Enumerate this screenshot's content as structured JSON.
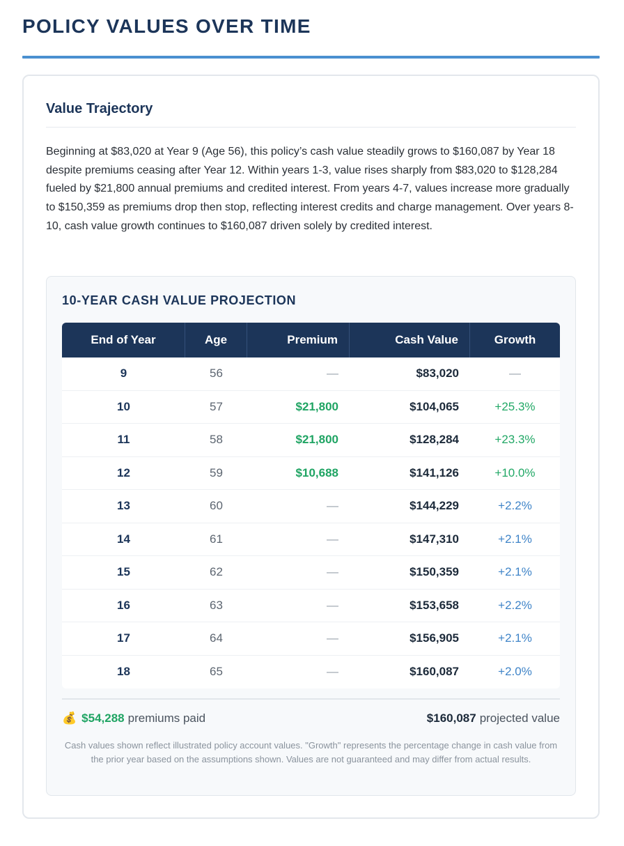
{
  "page": {
    "title": "POLICY VALUES OVER TIME"
  },
  "section": {
    "heading": "Value Trajectory",
    "summary": "Beginning at $83,020 at Year 9 (Age 56), this policy’s cash value steadily grows to $160,087 by Year 18 despite premiums ceasing after Year 12. Within years 1-3, value rises sharply from $83,020 to $128,284 fueled by $21,800 annual premiums and credited interest. From years 4-7, values increase more gradually to $150,359 as premiums drop then stop, reflecting interest credits and charge management. Over years 8-10, cash value growth continues to $160,087 driven solely by credited interest."
  },
  "projection": {
    "title": "10-YEAR CASH VALUE PROJECTION",
    "columns": [
      "End of Year",
      "Age",
      "Premium",
      "Cash Value",
      "Growth"
    ],
    "rows": [
      {
        "year": "9",
        "age": "56",
        "premium": "—",
        "cash_value": "$83,020",
        "growth": "—",
        "premium_paid": false,
        "growth_style": "dash"
      },
      {
        "year": "10",
        "age": "57",
        "premium": "$21,800",
        "cash_value": "$104,065",
        "growth": "+25.3%",
        "premium_paid": true,
        "growth_style": "green"
      },
      {
        "year": "11",
        "age": "58",
        "premium": "$21,800",
        "cash_value": "$128,284",
        "growth": "+23.3%",
        "premium_paid": true,
        "growth_style": "green"
      },
      {
        "year": "12",
        "age": "59",
        "premium": "$10,688",
        "cash_value": "$141,126",
        "growth": "+10.0%",
        "premium_paid": true,
        "growth_style": "green"
      },
      {
        "year": "13",
        "age": "60",
        "premium": "—",
        "cash_value": "$144,229",
        "growth": "+2.2%",
        "premium_paid": false,
        "growth_style": "blue"
      },
      {
        "year": "14",
        "age": "61",
        "premium": "—",
        "cash_value": "$147,310",
        "growth": "+2.1%",
        "premium_paid": false,
        "growth_style": "blue"
      },
      {
        "year": "15",
        "age": "62",
        "premium": "—",
        "cash_value": "$150,359",
        "growth": "+2.1%",
        "premium_paid": false,
        "growth_style": "blue"
      },
      {
        "year": "16",
        "age": "63",
        "premium": "—",
        "cash_value": "$153,658",
        "growth": "+2.2%",
        "premium_paid": false,
        "growth_style": "blue"
      },
      {
        "year": "17",
        "age": "64",
        "premium": "—",
        "cash_value": "$156,905",
        "growth": "+2.1%",
        "premium_paid": false,
        "growth_style": "blue"
      },
      {
        "year": "18",
        "age": "65",
        "premium": "—",
        "cash_value": "$160,087",
        "growth": "+2.0%",
        "premium_paid": false,
        "growth_style": "blue"
      }
    ],
    "totals": {
      "icon": "moneybag-icon",
      "icon_glyph": "💰",
      "premiums_amount": "$54,288",
      "premiums_label": "premiums paid",
      "projected_amount": "$160,087",
      "projected_label": "projected value"
    },
    "disclaimer": "Cash values shown reflect illustrated policy account values. \"Growth\" represents the percentage change in cash value from the prior year based on the assumptions shown. Values are not guaranteed and may differ from actual results."
  },
  "colors": {
    "navy": "#1c3559",
    "accent_blue": "#4a90d0",
    "premium_green": "#1fa463",
    "growth_green": "#22a866",
    "growth_blue": "#3f84c8"
  }
}
